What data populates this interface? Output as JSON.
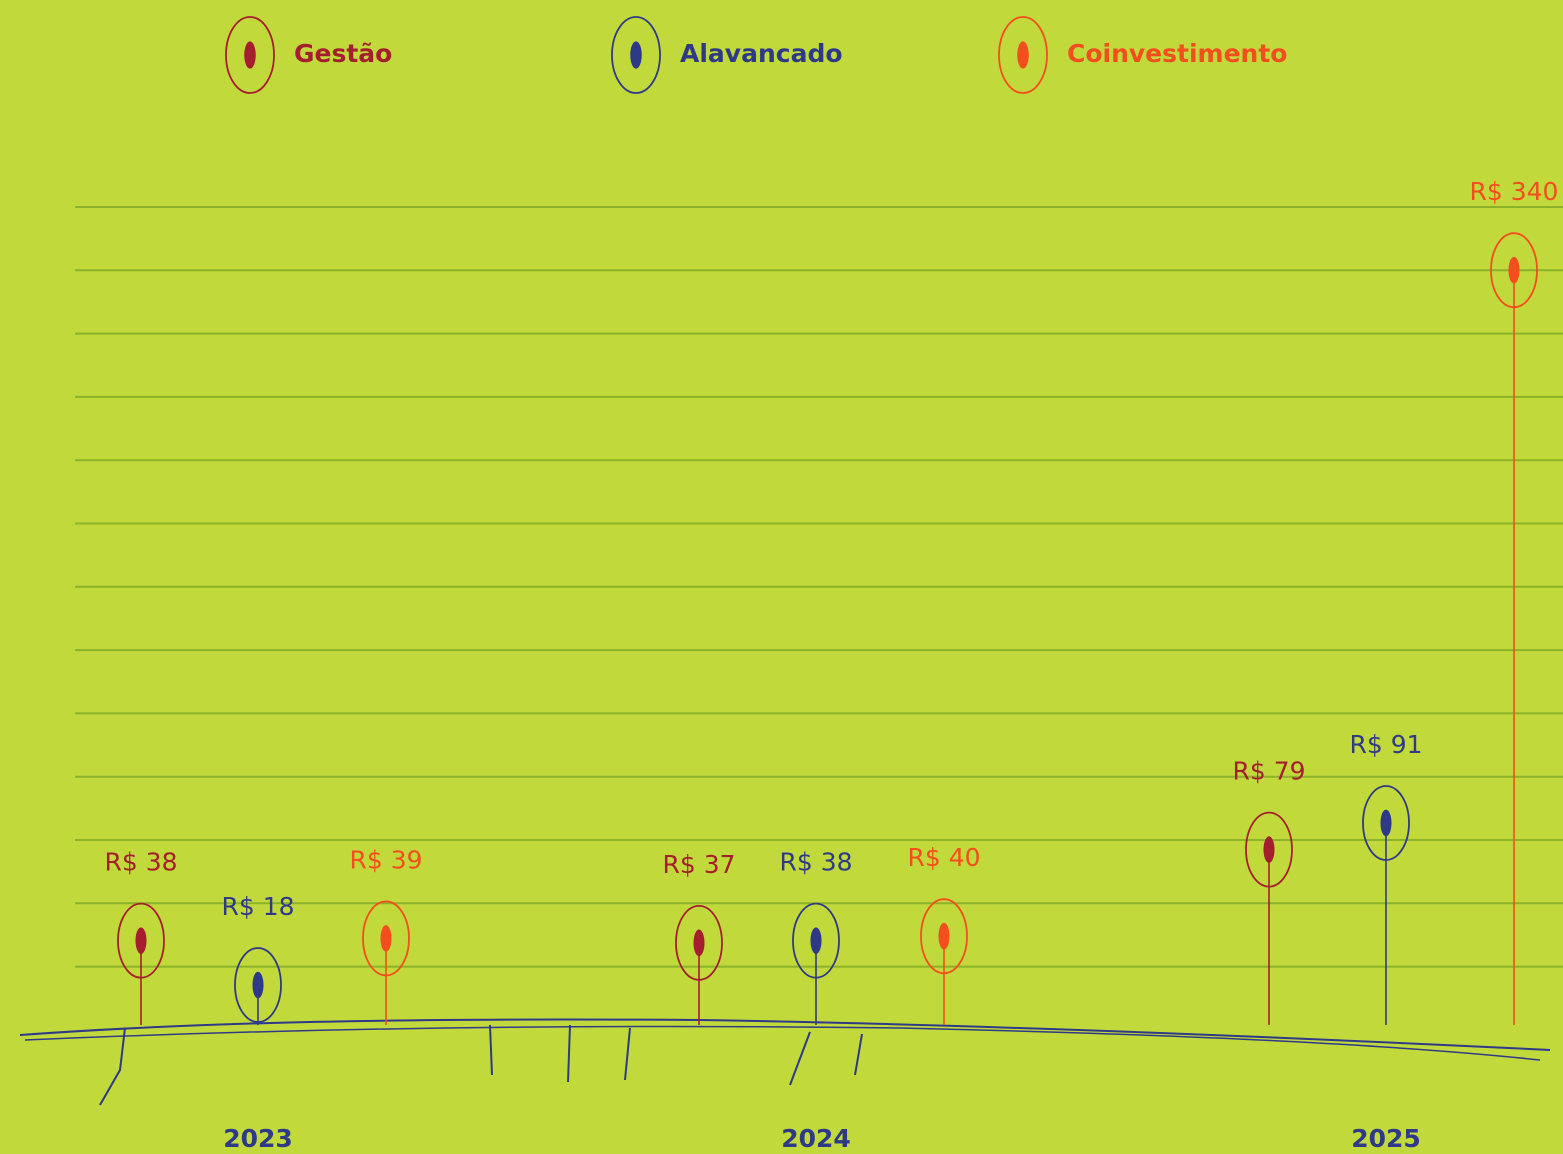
{
  "chart_data": {
    "type": "lollipop",
    "categories": [
      "2023",
      "2024",
      "2025"
    ],
    "series": [
      {
        "name": "Gestão",
        "color": "#a51e2e",
        "values": [
          38,
          37,
          79
        ],
        "value_labels": [
          "R$ 38",
          "R$ 37",
          "R$ 79"
        ]
      },
      {
        "name": "Alavancado",
        "color": "#2e3a87",
        "values": [
          18,
          38,
          91
        ],
        "value_labels": [
          "R$ 18",
          "R$ 38",
          "R$ 91"
        ]
      },
      {
        "name": "Coinvestimento",
        "color": "#f24e1e",
        "values": [
          39,
          40,
          340
        ],
        "value_labels": [
          "R$ 39",
          "R$ 40",
          "R$ 340"
        ]
      }
    ],
    "ylim": [
      0,
      350
    ]
  }
}
